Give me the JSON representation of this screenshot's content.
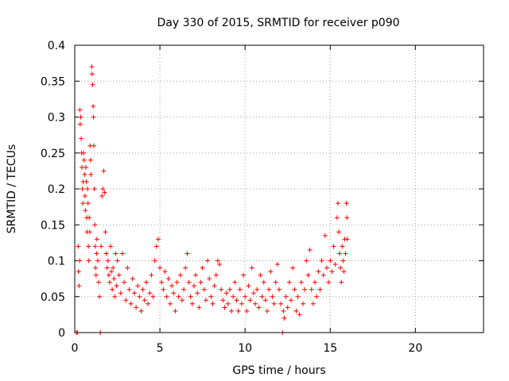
{
  "chart_data": {
    "type": "scatter",
    "title": "Day 330 of 2015, SRMTID for receiver p090",
    "xlabel": "GPS time / hours",
    "ylabel": "SRMTID / TECUs",
    "xlim": [
      0,
      24
    ],
    "ylim": [
      0,
      0.4
    ],
    "x_ticks": [
      0,
      5,
      10,
      15,
      20
    ],
    "x_tick_labels": [
      "0",
      "5",
      "10",
      "15",
      "20"
    ],
    "y_ticks": [
      0,
      0.05,
      0.1,
      0.15,
      0.2,
      0.25,
      0.3,
      0.35,
      0.4
    ],
    "y_tick_labels": [
      "0",
      "0.05",
      "0.1",
      "0.15",
      "0.2",
      "0.25",
      "0.3",
      "0.35",
      "0.4"
    ],
    "grid": true,
    "marker": "plus",
    "series": [
      {
        "name": "SRMTID",
        "color": "#ff0000",
        "points": [
          [
            0.1,
            0.0
          ],
          [
            0.15,
            0.0
          ],
          [
            0.2,
            0.12
          ],
          [
            0.22,
            0.085
          ],
          [
            0.25,
            0.065
          ],
          [
            0.28,
            0.1
          ],
          [
            0.3,
            0.31
          ],
          [
            0.32,
            0.29
          ],
          [
            0.35,
            0.3
          ],
          [
            0.38,
            0.27
          ],
          [
            0.4,
            0.25
          ],
          [
            0.42,
            0.23
          ],
          [
            0.45,
            0.2
          ],
          [
            0.48,
            0.18
          ],
          [
            0.5,
            0.21
          ],
          [
            0.52,
            0.25
          ],
          [
            0.55,
            0.24
          ],
          [
            0.58,
            0.22
          ],
          [
            0.6,
            0.19
          ],
          [
            0.62,
            0.17
          ],
          [
            0.65,
            0.23
          ],
          [
            0.68,
            0.21
          ],
          [
            0.7,
            0.16
          ],
          [
            0.72,
            0.14
          ],
          [
            0.75,
            0.2
          ],
          [
            0.78,
            0.18
          ],
          [
            0.8,
            0.12
          ],
          [
            0.82,
            0.1
          ],
          [
            0.85,
            0.16
          ],
          [
            0.88,
            0.14
          ],
          [
            0.9,
            0.26
          ],
          [
            0.92,
            0.24
          ],
          [
            0.95,
            0.22
          ],
          [
            1.0,
            0.37
          ],
          [
            1.02,
            0.36
          ],
          [
            1.05,
            0.345
          ],
          [
            1.08,
            0.315
          ],
          [
            1.1,
            0.3
          ],
          [
            1.12,
            0.26
          ],
          [
            1.15,
            0.2
          ],
          [
            1.18,
            0.15
          ],
          [
            1.2,
            0.12
          ],
          [
            1.22,
            0.09
          ],
          [
            1.25,
            0.08
          ],
          [
            1.28,
            0.11
          ],
          [
            1.3,
            0.13
          ],
          [
            1.35,
            0.1
          ],
          [
            1.4,
            0.07
          ],
          [
            1.45,
            0.05
          ],
          [
            1.5,
            0.0
          ],
          [
            1.55,
            0.12
          ],
          [
            1.6,
            0.19
          ],
          [
            1.65,
            0.2
          ],
          [
            1.7,
            0.225
          ],
          [
            1.75,
            0.195
          ],
          [
            1.8,
            0.14
          ],
          [
            1.85,
            0.11
          ],
          [
            1.9,
            0.09
          ],
          [
            1.95,
            0.1
          ],
          [
            2.0,
            0.08
          ],
          [
            2.05,
            0.07
          ],
          [
            2.1,
            0.12
          ],
          [
            2.15,
            0.085
          ],
          [
            2.2,
            0.06
          ],
          [
            2.25,
            0.09
          ],
          [
            2.3,
            0.075
          ],
          [
            2.35,
            0.05
          ],
          [
            2.4,
            0.11
          ],
          [
            2.45,
            0.065
          ],
          [
            2.5,
            0.1
          ],
          [
            2.6,
            0.08
          ],
          [
            2.7,
            0.055
          ],
          [
            2.8,
            0.11
          ],
          [
            2.9,
            0.07
          ],
          [
            3.0,
            0.045
          ],
          [
            3.1,
            0.09
          ],
          [
            3.2,
            0.06
          ],
          [
            3.3,
            0.04
          ],
          [
            3.4,
            0.075
          ],
          [
            3.5,
            0.055
          ],
          [
            3.6,
            0.035
          ],
          [
            3.7,
            0.065
          ],
          [
            3.8,
            0.05
          ],
          [
            3.9,
            0.03
          ],
          [
            4.0,
            0.06
          ],
          [
            4.1,
            0.045
          ],
          [
            4.2,
            0.07
          ],
          [
            4.3,
            0.04
          ],
          [
            4.4,
            0.055
          ],
          [
            4.5,
            0.08
          ],
          [
            4.6,
            0.05
          ],
          [
            4.7,
            0.1
          ],
          [
            4.8,
            0.12
          ],
          [
            4.9,
            0.13
          ],
          [
            5.0,
            0.09
          ],
          [
            5.1,
            0.07
          ],
          [
            5.2,
            0.06
          ],
          [
            5.3,
            0.085
          ],
          [
            5.4,
            0.05
          ],
          [
            5.5,
            0.075
          ],
          [
            5.6,
            0.04
          ],
          [
            5.7,
            0.065
          ],
          [
            5.8,
            0.055
          ],
          [
            5.9,
            0.03
          ],
          [
            6.0,
            0.07
          ],
          [
            6.1,
            0.05
          ],
          [
            6.2,
            0.08
          ],
          [
            6.3,
            0.045
          ],
          [
            6.4,
            0.06
          ],
          [
            6.5,
            0.09
          ],
          [
            6.6,
            0.11
          ],
          [
            6.7,
            0.07
          ],
          [
            6.8,
            0.05
          ],
          [
            6.9,
            0.04
          ],
          [
            7.0,
            0.065
          ],
          [
            7.1,
            0.08
          ],
          [
            7.2,
            0.055
          ],
          [
            7.3,
            0.035
          ],
          [
            7.4,
            0.07
          ],
          [
            7.5,
            0.09
          ],
          [
            7.6,
            0.06
          ],
          [
            7.7,
            0.045
          ],
          [
            7.8,
            0.1
          ],
          [
            7.9,
            0.075
          ],
          [
            8.0,
            0.05
          ],
          [
            8.1,
            0.04
          ],
          [
            8.2,
            0.065
          ],
          [
            8.3,
            0.08
          ],
          [
            8.4,
            0.1
          ],
          [
            8.5,
            0.095
          ],
          [
            8.6,
            0.06
          ],
          [
            8.7,
            0.045
          ],
          [
            8.8,
            0.035
          ],
          [
            8.9,
            0.055
          ],
          [
            9.0,
            0.04
          ],
          [
            9.1,
            0.06
          ],
          [
            9.2,
            0.03
          ],
          [
            9.3,
            0.05
          ],
          [
            9.4,
            0.07
          ],
          [
            9.5,
            0.045
          ],
          [
            9.6,
            0.03
          ],
          [
            9.7,
            0.06
          ],
          [
            9.8,
            0.04
          ],
          [
            9.9,
            0.08
          ],
          [
            10.0,
            0.05
          ],
          [
            10.1,
            0.03
          ],
          [
            10.2,
            0.065
          ],
          [
            10.3,
            0.045
          ],
          [
            10.4,
            0.09
          ],
          [
            10.5,
            0.055
          ],
          [
            10.6,
            0.04
          ],
          [
            10.7,
            0.06
          ],
          [
            10.8,
            0.035
          ],
          [
            10.9,
            0.08
          ],
          [
            11.0,
            0.05
          ],
          [
            11.1,
            0.07
          ],
          [
            11.2,
            0.045
          ],
          [
            11.3,
            0.03
          ],
          [
            11.4,
            0.06
          ],
          [
            11.5,
            0.085
          ],
          [
            11.6,
            0.05
          ],
          [
            11.7,
            0.04
          ],
          [
            11.8,
            0.07
          ],
          [
            11.9,
            0.095
          ],
          [
            12.0,
            0.06
          ],
          [
            12.1,
            0.04
          ],
          [
            12.2,
            0.0
          ],
          [
            12.25,
            0.03
          ],
          [
            12.3,
            0.02
          ],
          [
            12.4,
            0.05
          ],
          [
            12.5,
            0.035
          ],
          [
            12.6,
            0.07
          ],
          [
            12.7,
            0.045
          ],
          [
            12.8,
            0.09
          ],
          [
            12.9,
            0.06
          ],
          [
            13.0,
            0.03
          ],
          [
            13.1,
            0.05
          ],
          [
            13.2,
            0.025
          ],
          [
            13.3,
            0.07
          ],
          [
            13.4,
            0.04
          ],
          [
            13.5,
            0.06
          ],
          [
            13.6,
            0.1
          ],
          [
            13.7,
            0.08
          ],
          [
            13.8,
            0.115
          ],
          [
            13.9,
            0.06
          ],
          [
            14.0,
            0.04
          ],
          [
            14.1,
            0.07
          ],
          [
            14.2,
            0.05
          ],
          [
            14.3,
            0.085
          ],
          [
            14.4,
            0.06
          ],
          [
            14.5,
            0.1
          ],
          [
            14.6,
            0.08
          ],
          [
            14.7,
            0.135
          ],
          [
            14.8,
            0.09
          ],
          [
            14.9,
            0.07
          ],
          [
            15.0,
            0.1
          ],
          [
            15.1,
            0.085
          ],
          [
            15.2,
            0.12
          ],
          [
            15.3,
            0.095
          ],
          [
            15.4,
            0.16
          ],
          [
            15.45,
            0.18
          ],
          [
            15.5,
            0.14
          ],
          [
            15.55,
            0.11
          ],
          [
            15.6,
            0.09
          ],
          [
            15.65,
            0.07
          ],
          [
            15.7,
            0.12
          ],
          [
            15.75,
            0.1
          ],
          [
            15.8,
            0.085
          ],
          [
            15.85,
            0.13
          ],
          [
            15.9,
            0.11
          ],
          [
            15.95,
            0.18
          ],
          [
            15.98,
            0.16
          ],
          [
            16.0,
            0.13
          ]
        ]
      }
    ]
  }
}
